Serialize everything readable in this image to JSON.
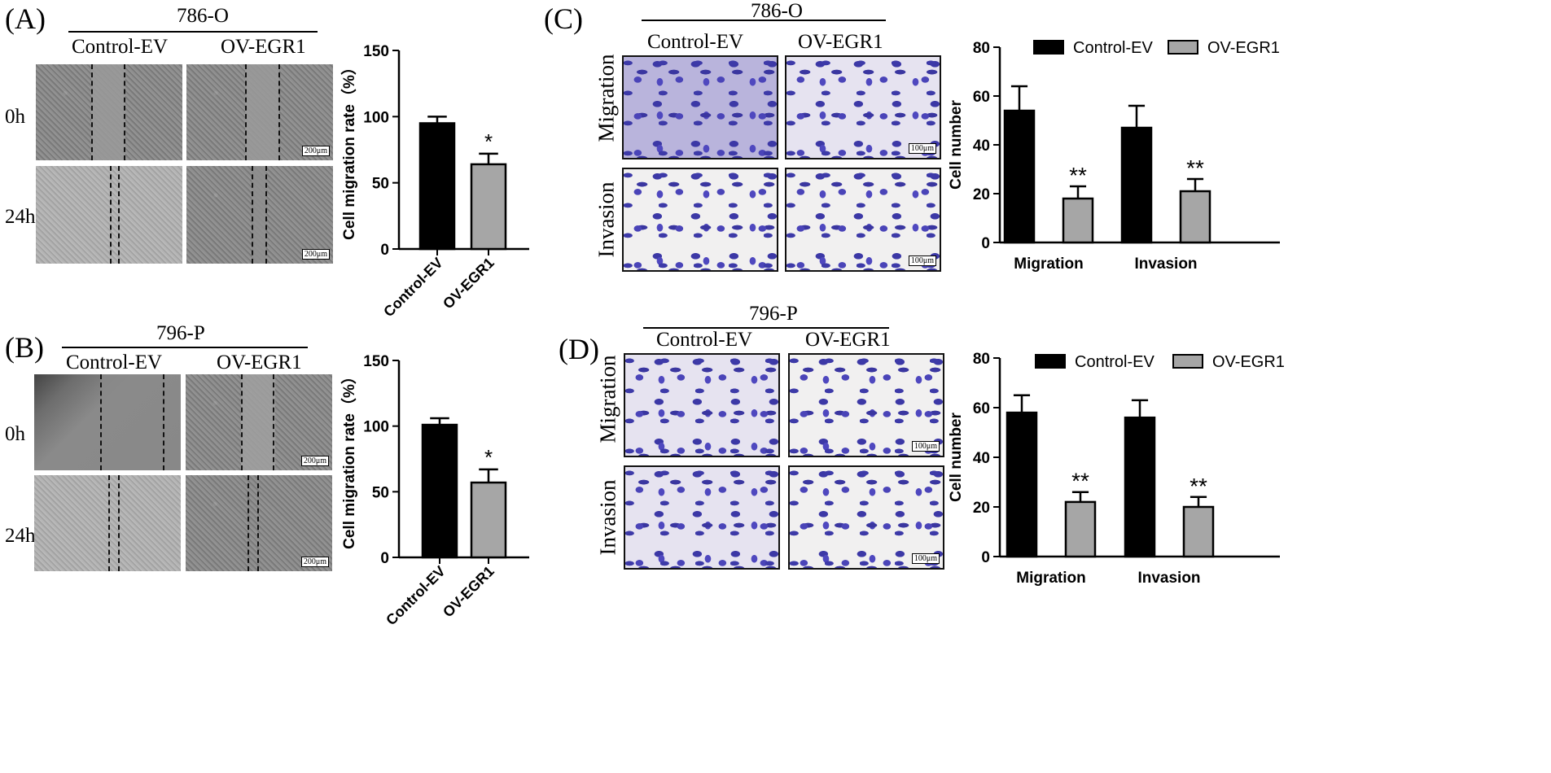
{
  "panels": {
    "A": {
      "label": "(A)",
      "cell_line": "786-O",
      "col1": "Control-EV",
      "col2": "OV-EGR1",
      "row1": "0h",
      "row2": "24h",
      "scale": "200μm"
    },
    "B": {
      "label": "(B)",
      "cell_line": "796-P",
      "col1": "Control-EV",
      "col2": "OV-EGR1",
      "row1": "0h",
      "row2": "24h",
      "scale": "200μm"
    },
    "C": {
      "label": "(C)",
      "cell_line": "786-O",
      "col1": "Control-EV",
      "col2": "OV-EGR1",
      "row1": "Migration",
      "row2": "Invasion",
      "scale": "100μm"
    },
    "D": {
      "label": "(D)",
      "cell_line": "796-P",
      "col1": "Control-EV",
      "col2": "OV-EGR1",
      "row1": "Migration",
      "row2": "Invasion",
      "scale": "100μm"
    }
  },
  "colors": {
    "control": "#000000",
    "ov": "#a6a6a6"
  },
  "chart_data": [
    {
      "id": "A",
      "type": "bar",
      "categories": [
        "Control-EV",
        "OV-EGR1"
      ],
      "values": [
        95,
        64
      ],
      "errors": [
        5,
        8
      ],
      "significance": [
        "",
        "*"
      ],
      "ylabel": "Cell migration rate（%）",
      "ylim": [
        0,
        150
      ],
      "yticks": [
        0,
        50,
        100,
        150
      ]
    },
    {
      "id": "B",
      "type": "bar",
      "categories": [
        "Control-EV",
        "OV-EGR1"
      ],
      "values": [
        101,
        57
      ],
      "errors": [
        5,
        10
      ],
      "significance": [
        "",
        "*"
      ],
      "ylabel": "Cell migration rate（%）",
      "ylim": [
        0,
        150
      ],
      "yticks": [
        0,
        50,
        100,
        150
      ]
    },
    {
      "id": "C",
      "type": "bar",
      "categories": [
        "Migration",
        "Invasion"
      ],
      "series": [
        {
          "name": "Control-EV",
          "values": [
            54,
            47
          ],
          "errors": [
            10,
            9
          ],
          "significance": [
            "",
            ""
          ]
        },
        {
          "name": "OV-EGR1",
          "values": [
            18,
            21
          ],
          "errors": [
            5,
            5
          ],
          "significance": [
            "**",
            "**"
          ]
        }
      ],
      "ylabel": "Cell number",
      "ylim": [
        0,
        80
      ],
      "yticks": [
        0,
        20,
        40,
        60,
        80
      ],
      "legend": "top"
    },
    {
      "id": "D",
      "type": "bar",
      "categories": [
        "Migration",
        "Invasion"
      ],
      "series": [
        {
          "name": "Control-EV",
          "values": [
            58,
            56
          ],
          "errors": [
            7,
            7
          ],
          "significance": [
            "",
            ""
          ]
        },
        {
          "name": "OV-EGR1",
          "values": [
            22,
            20
          ],
          "errors": [
            4,
            4
          ],
          "significance": [
            "**",
            "**"
          ]
        }
      ],
      "ylabel": "Cell number",
      "ylim": [
        0,
        80
      ],
      "yticks": [
        0,
        20,
        40,
        60,
        80
      ],
      "legend": "top"
    }
  ]
}
